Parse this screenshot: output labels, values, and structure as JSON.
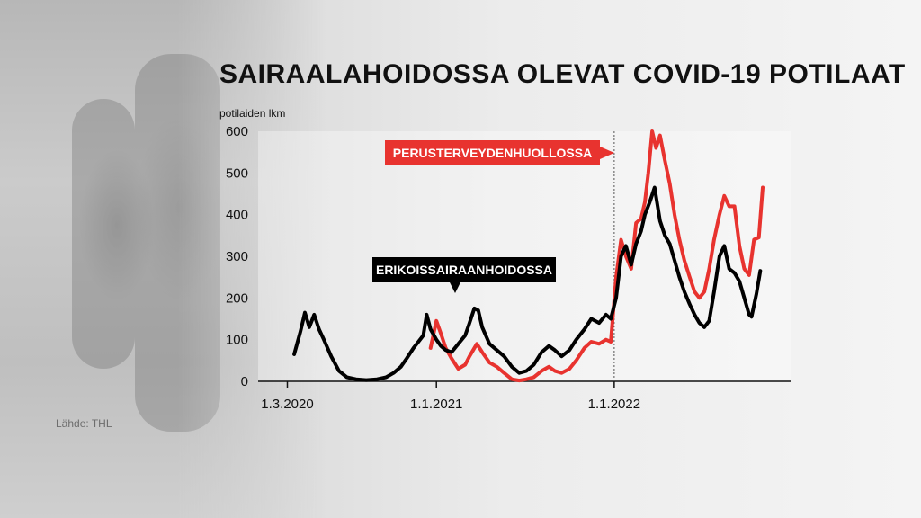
{
  "source_text": "Lähde: THL",
  "chart_data": {
    "type": "line",
    "title": "SAIRAALAHOIDOSSA OLEVAT COVID-19 POTILAAT",
    "ylabel": "potilaiden lkm",
    "xlabel": "",
    "ylim": [
      0,
      600
    ],
    "yticks": [
      0,
      100,
      200,
      300,
      400,
      500,
      600
    ],
    "xlim": [
      "2020-01-01",
      "2022-12-31"
    ],
    "xticks": [
      {
        "date": "2020-03-01",
        "label": "1.3.2020"
      },
      {
        "date": "2021-01-01",
        "label": "1.1.2021"
      },
      {
        "date": "2022-01-01",
        "label": "1.1.2022"
      }
    ],
    "grid": false,
    "reference_line_date": "2022-01-01",
    "series": [
      {
        "name": "ERIKOISSAIRAANHOIDOSSA",
        "color": "#000000",
        "points": [
          [
            "2020-03-15",
            65
          ],
          [
            "2020-03-28",
            120
          ],
          [
            "2020-04-06",
            165
          ],
          [
            "2020-04-15",
            130
          ],
          [
            "2020-04-25",
            160
          ],
          [
            "2020-05-05",
            125
          ],
          [
            "2020-05-15",
            100
          ],
          [
            "2020-05-30",
            60
          ],
          [
            "2020-06-15",
            25
          ],
          [
            "2020-07-01",
            10
          ],
          [
            "2020-07-20",
            5
          ],
          [
            "2020-08-10",
            3
          ],
          [
            "2020-09-01",
            5
          ],
          [
            "2020-09-20",
            10
          ],
          [
            "2020-10-05",
            20
          ],
          [
            "2020-10-20",
            35
          ],
          [
            "2020-11-01",
            55
          ],
          [
            "2020-11-15",
            80
          ],
          [
            "2020-11-25",
            95
          ],
          [
            "2020-12-05",
            110
          ],
          [
            "2020-12-12",
            160
          ],
          [
            "2020-12-20",
            125
          ],
          [
            "2021-01-01",
            100
          ],
          [
            "2021-01-10",
            85
          ],
          [
            "2021-01-20",
            75
          ],
          [
            "2021-02-01",
            70
          ],
          [
            "2021-02-15",
            90
          ],
          [
            "2021-03-01",
            110
          ],
          [
            "2021-03-10",
            140
          ],
          [
            "2021-03-20",
            175
          ],
          [
            "2021-03-28",
            170
          ],
          [
            "2021-04-05",
            130
          ],
          [
            "2021-04-20",
            90
          ],
          [
            "2021-05-05",
            75
          ],
          [
            "2021-05-20",
            60
          ],
          [
            "2021-06-05",
            35
          ],
          [
            "2021-06-20",
            20
          ],
          [
            "2021-07-05",
            25
          ],
          [
            "2021-07-20",
            40
          ],
          [
            "2021-08-05",
            70
          ],
          [
            "2021-08-20",
            85
          ],
          [
            "2021-09-01",
            75
          ],
          [
            "2021-09-15",
            60
          ],
          [
            "2021-10-01",
            75
          ],
          [
            "2021-10-15",
            100
          ],
          [
            "2021-11-01",
            125
          ],
          [
            "2021-11-15",
            150
          ],
          [
            "2021-12-01",
            140
          ],
          [
            "2021-12-15",
            160
          ],
          [
            "2021-12-25",
            150
          ],
          [
            "2022-01-05",
            200
          ],
          [
            "2022-01-15",
            300
          ],
          [
            "2022-01-25",
            325
          ],
          [
            "2022-02-05",
            280
          ],
          [
            "2022-02-15",
            330
          ],
          [
            "2022-02-25",
            360
          ],
          [
            "2022-03-05",
            400
          ],
          [
            "2022-03-15",
            430
          ],
          [
            "2022-03-25",
            465
          ],
          [
            "2022-04-05",
            385
          ],
          [
            "2022-04-15",
            350
          ],
          [
            "2022-04-25",
            330
          ],
          [
            "2022-05-05",
            290
          ],
          [
            "2022-05-15",
            250
          ],
          [
            "2022-05-25",
            215
          ],
          [
            "2022-06-05",
            185
          ],
          [
            "2022-06-15",
            160
          ],
          [
            "2022-06-25",
            140
          ],
          [
            "2022-07-05",
            130
          ],
          [
            "2022-07-15",
            145
          ],
          [
            "2022-07-25",
            215
          ],
          [
            "2022-08-05",
            300
          ],
          [
            "2022-08-15",
            325
          ],
          [
            "2022-08-25",
            270
          ],
          [
            "2022-09-05",
            260
          ],
          [
            "2022-09-15",
            240
          ],
          [
            "2022-09-25",
            200
          ],
          [
            "2022-10-05",
            160
          ],
          [
            "2022-10-10",
            155
          ],
          [
            "2022-10-20",
            210
          ],
          [
            "2022-10-28",
            265
          ]
        ]
      },
      {
        "name": "PERUSTERVEYDENHUOLLOSSA",
        "color": "#e8332f",
        "points": [
          [
            "2020-12-20",
            80
          ],
          [
            "2021-01-01",
            145
          ],
          [
            "2021-01-10",
            115
          ],
          [
            "2021-01-20",
            80
          ],
          [
            "2021-02-01",
            55
          ],
          [
            "2021-02-15",
            30
          ],
          [
            "2021-03-01",
            40
          ],
          [
            "2021-03-10",
            60
          ],
          [
            "2021-03-25",
            90
          ],
          [
            "2021-04-05",
            70
          ],
          [
            "2021-04-20",
            45
          ],
          [
            "2021-05-05",
            35
          ],
          [
            "2021-05-20",
            20
          ],
          [
            "2021-06-05",
            5
          ],
          [
            "2021-06-20",
            2
          ],
          [
            "2021-07-05",
            5
          ],
          [
            "2021-07-20",
            10
          ],
          [
            "2021-08-05",
            25
          ],
          [
            "2021-08-20",
            35
          ],
          [
            "2021-09-01",
            25
          ],
          [
            "2021-09-15",
            20
          ],
          [
            "2021-10-01",
            30
          ],
          [
            "2021-10-15",
            50
          ],
          [
            "2021-11-01",
            80
          ],
          [
            "2021-11-15",
            95
          ],
          [
            "2021-12-01",
            90
          ],
          [
            "2021-12-15",
            100
          ],
          [
            "2021-12-25",
            95
          ],
          [
            "2022-01-05",
            250
          ],
          [
            "2022-01-15",
            340
          ],
          [
            "2022-01-25",
            300
          ],
          [
            "2022-02-05",
            270
          ],
          [
            "2022-02-15",
            380
          ],
          [
            "2022-02-25",
            390
          ],
          [
            "2022-03-05",
            430
          ],
          [
            "2022-03-12",
            500
          ],
          [
            "2022-03-20",
            600
          ],
          [
            "2022-03-28",
            560
          ],
          [
            "2022-04-05",
            590
          ],
          [
            "2022-04-15",
            530
          ],
          [
            "2022-04-25",
            475
          ],
          [
            "2022-05-05",
            400
          ],
          [
            "2022-05-15",
            340
          ],
          [
            "2022-05-25",
            290
          ],
          [
            "2022-06-05",
            250
          ],
          [
            "2022-06-15",
            215
          ],
          [
            "2022-06-25",
            200
          ],
          [
            "2022-07-05",
            215
          ],
          [
            "2022-07-15",
            270
          ],
          [
            "2022-07-25",
            340
          ],
          [
            "2022-08-05",
            400
          ],
          [
            "2022-08-15",
            445
          ],
          [
            "2022-08-25",
            420
          ],
          [
            "2022-09-05",
            420
          ],
          [
            "2022-09-15",
            325
          ],
          [
            "2022-09-25",
            270
          ],
          [
            "2022-10-05",
            255
          ],
          [
            "2022-10-15",
            340
          ],
          [
            "2022-10-25",
            345
          ],
          [
            "2022-11-02",
            465
          ]
        ]
      }
    ]
  }
}
